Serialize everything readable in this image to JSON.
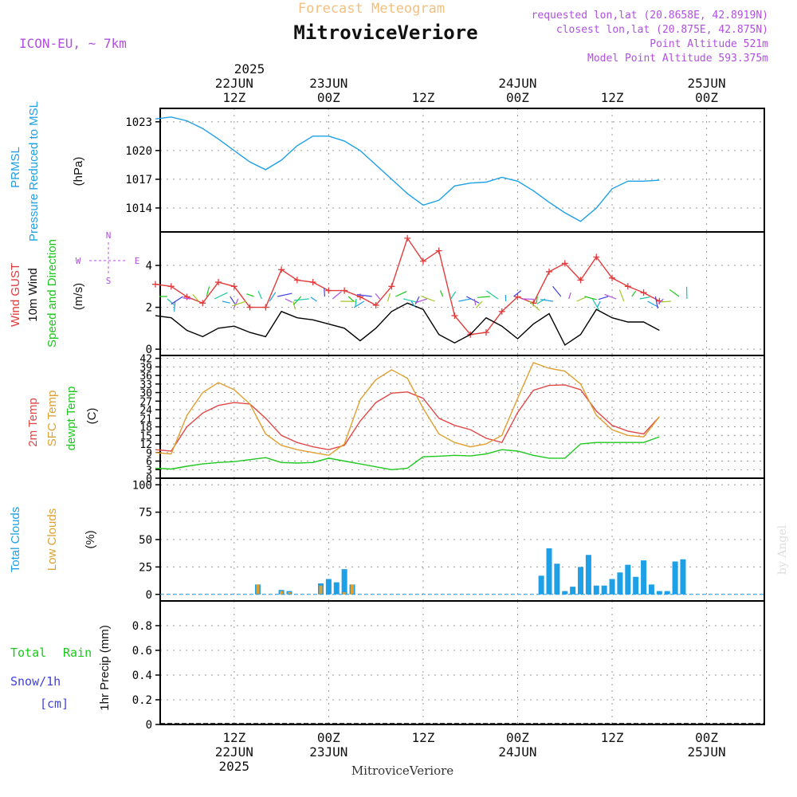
{
  "header": {
    "top_title": "Forecast Meteogram",
    "location": "MitroviceVeriore",
    "model": "ICON-EU, ~ 7km",
    "requested": "requested lon,lat (20.8658E, 42.8919N)",
    "closest": "closest lon,lat (20.875E, 42.875N)",
    "point_alt": "Point Altitude 521m",
    "model_alt": "Model Point Altitude 593.375m"
  },
  "footer": {
    "location": "MitroviceVeriore",
    "credit": "by Angel"
  },
  "colors": {
    "pressure": "#1ea0e6",
    "gust": "#e23b3b",
    "wind": "#000000",
    "dirlabel": "#19c819",
    "temp2m": "#e04848",
    "sfc": "#e0a030",
    "dew": "#1ec81e",
    "total_clouds": "#1ea0e6",
    "low_clouds": "#e0a030",
    "rain": "#19c819",
    "snow": "#4040e0",
    "purple": "#b050e0",
    "title_orange": "#f0c080"
  },
  "chart_data": [
    {
      "type": "line",
      "panel": "pressure",
      "ylabel_left": [
        "PRMSL",
        "Pressure Reduced to MSL"
      ],
      "units": "(hPa)",
      "yticks": [
        1014,
        1017,
        1020,
        1023
      ],
      "ylim": [
        1011.5,
        1024.4
      ],
      "x_hours": [
        0,
        2,
        4,
        6,
        8,
        10,
        12,
        14,
        16,
        18,
        20,
        22,
        24,
        26,
        28,
        30,
        32,
        34,
        36,
        38,
        40,
        42,
        44,
        46,
        48,
        50,
        52,
        54,
        56,
        58,
        60,
        62,
        64
      ],
      "series": [
        {
          "name": "PRMSL",
          "values": [
            1023.3,
            1023.5,
            1023.1,
            1022.3,
            1021.2,
            1020.0,
            1018.8,
            1018.0,
            1019.0,
            1020.5,
            1021.5,
            1021.5,
            1021.0,
            1020.0,
            1018.5,
            1017.0,
            1015.5,
            1014.3,
            1014.8,
            1016.3,
            1016.6,
            1016.7,
            1017.2,
            1016.8,
            1015.8,
            1014.6,
            1013.5,
            1012.6,
            1014.0,
            1016.0,
            1016.8,
            1016.8,
            1016.9
          ]
        }
      ]
    },
    {
      "type": "line",
      "panel": "wind",
      "ylabel_left": [
        "Wind GUST",
        "10m Wind",
        "Speed and Direction"
      ],
      "units": "(m/s)",
      "compass": [
        "N",
        "S",
        "W",
        "E"
      ],
      "yticks": [
        0,
        2,
        4
      ],
      "ylim": [
        -0.3,
        5.6
      ],
      "x_hours": [
        0,
        2,
        4,
        6,
        8,
        10,
        12,
        14,
        16,
        18,
        20,
        22,
        24,
        26,
        28,
        30,
        32,
        34,
        36,
        38,
        40,
        42,
        44,
        46,
        48,
        50,
        52,
        54,
        56,
        58,
        60,
        62,
        64
      ],
      "series": [
        {
          "name": "Wind GUST",
          "values": [
            3.1,
            3.0,
            2.5,
            2.2,
            3.2,
            3.0,
            2.0,
            2.0,
            3.8,
            3.3,
            3.2,
            2.8,
            2.8,
            2.5,
            2.1,
            3.0,
            5.3,
            4.2,
            4.7,
            1.6,
            0.7,
            0.8,
            1.8,
            2.5,
            2.2,
            3.7,
            4.1,
            3.3,
            4.4,
            3.4,
            3.0,
            2.7,
            2.3
          ]
        },
        {
          "name": "10m Wind",
          "values": [
            1.6,
            1.5,
            0.9,
            0.6,
            1.0,
            1.1,
            0.8,
            0.6,
            1.8,
            1.5,
            1.4,
            1.2,
            1.0,
            0.4,
            1.0,
            1.8,
            2.2,
            1.9,
            0.7,
            0.3,
            0.7,
            1.5,
            1.1,
            0.5,
            1.2,
            1.7,
            0.2,
            0.7,
            1.9,
            1.5,
            1.3,
            1.3,
            0.9
          ]
        }
      ]
    },
    {
      "type": "line",
      "panel": "temperature",
      "ylabel_left": [
        "2m Temp",
        "SFC Temp",
        "dewpt Temp"
      ],
      "units": "(C)",
      "yticks": [
        0,
        3,
        6,
        9,
        12,
        15,
        18,
        21,
        24,
        27,
        30,
        33,
        36,
        39,
        42
      ],
      "ylim": [
        0,
        43
      ],
      "x_hours": [
        0,
        2,
        4,
        6,
        8,
        10,
        12,
        14,
        16,
        18,
        20,
        22,
        24,
        26,
        28,
        30,
        32,
        34,
        36,
        38,
        40,
        42,
        44,
        46,
        48,
        50,
        52,
        54,
        56,
        58,
        60,
        62,
        64
      ],
      "series": [
        {
          "name": "2m Temp",
          "values": [
            10.0,
            9.5,
            18.0,
            22.8,
            25.5,
            26.5,
            26.0,
            21.0,
            15.0,
            12.5,
            11.0,
            10.0,
            11.5,
            20.0,
            26.5,
            29.8,
            30.2,
            28.0,
            21.0,
            18.5,
            17.0,
            14.0,
            12.5,
            23.0,
            30.8,
            32.5,
            32.7,
            31.0,
            23.5,
            18.5,
            16.5,
            15.5,
            21.5
          ]
        },
        {
          "name": "SFC Temp",
          "values": [
            9.0,
            8.5,
            22.0,
            30.0,
            33.5,
            31.0,
            26.0,
            15.5,
            11.5,
            10.0,
            9.0,
            8.0,
            12.0,
            27.5,
            34.5,
            38.0,
            35.0,
            24.5,
            15.5,
            12.5,
            11.0,
            12.0,
            15.0,
            28.0,
            40.5,
            38.5,
            37.5,
            33.0,
            22.0,
            17.0,
            15.0,
            14.5,
            21.5
          ]
        },
        {
          "name": "dewpt Temp",
          "values": [
            3.5,
            3.2,
            4.2,
            5.0,
            5.5,
            5.8,
            6.5,
            7.2,
            5.5,
            5.3,
            5.5,
            7.0,
            6.0,
            5.0,
            4.0,
            3.0,
            3.5,
            7.5,
            7.7,
            8.0,
            7.8,
            8.5,
            10.0,
            9.5,
            8.0,
            7.0,
            7.0,
            12.0,
            12.5,
            12.5,
            12.5,
            12.5,
            14.5
          ]
        }
      ]
    },
    {
      "type": "bar",
      "panel": "clouds",
      "ylabel_left": [
        "Total Clouds",
        "Low Clouds"
      ],
      "units": "(%)",
      "yticks": [
        0,
        25,
        50,
        75,
        100
      ],
      "ylim": [
        -6,
        106
      ],
      "bars": [
        {
          "h": 13,
          "total": 9,
          "low": 9
        },
        {
          "h": 16,
          "total": 4,
          "low": 3
        },
        {
          "h": 17,
          "total": 3,
          "low": 2
        },
        {
          "h": 21,
          "total": 10,
          "low": 8
        },
        {
          "h": 22,
          "total": 14,
          "low": 0
        },
        {
          "h": 23,
          "total": 11,
          "low": 0
        },
        {
          "h": 24,
          "total": 23,
          "low": 2
        },
        {
          "h": 25,
          "total": 9,
          "low": 9
        },
        {
          "h": 49,
          "total": 17,
          "low": 0
        },
        {
          "h": 50,
          "total": 42,
          "low": 0
        },
        {
          "h": 51,
          "total": 28,
          "low": 0
        },
        {
          "h": 52,
          "total": 3,
          "low": 0
        },
        {
          "h": 53,
          "total": 7,
          "low": 0
        },
        {
          "h": 54,
          "total": 25,
          "low": 0
        },
        {
          "h": 55,
          "total": 36,
          "low": 0
        },
        {
          "h": 56,
          "total": 8,
          "low": 0
        },
        {
          "h": 57,
          "total": 8,
          "low": 0
        },
        {
          "h": 58,
          "total": 14,
          "low": 0
        },
        {
          "h": 59,
          "total": 20,
          "low": 0
        },
        {
          "h": 60,
          "total": 27,
          "low": 0
        },
        {
          "h": 61,
          "total": 16,
          "low": 0
        },
        {
          "h": 62,
          "total": 31,
          "low": 0
        },
        {
          "h": 63,
          "total": 9,
          "low": 0
        },
        {
          "h": 64,
          "total": 3,
          "low": 0
        },
        {
          "h": 65,
          "total": 3,
          "low": 0
        },
        {
          "h": 66,
          "total": 30,
          "low": 0
        },
        {
          "h": 67,
          "total": 32,
          "low": 0
        }
      ]
    },
    {
      "type": "bar",
      "panel": "precip",
      "ylabel_left": [
        "Total",
        "Rain",
        "Snow/1h",
        "[cm]"
      ],
      "ylabel": "1hr Precip (mm)",
      "yticks": [
        0,
        0.2,
        0.4,
        0.6,
        0.8
      ],
      "ylim": [
        0,
        1.0
      ],
      "values": []
    }
  ],
  "xaxis": {
    "top_year": "2025",
    "ticks": [
      {
        "h": 10,
        "top": [
          "22JUN",
          "12Z"
        ],
        "bottom": [
          "12Z",
          "22JUN",
          "2025"
        ]
      },
      {
        "h": 22,
        "top": [
          "23JUN",
          "00Z"
        ],
        "bottom": [
          "00Z",
          "23JUN"
        ]
      },
      {
        "h": 34,
        "top": [
          "12Z"
        ],
        "bottom": [
          "12Z"
        ]
      },
      {
        "h": 46,
        "top": [
          "24JUN",
          "00Z"
        ],
        "bottom": [
          "00Z",
          "24JUN"
        ]
      },
      {
        "h": 58,
        "top": [
          "12Z"
        ],
        "bottom": [
          "12Z"
        ]
      },
      {
        "h": 70,
        "top": [
          "25JUN",
          "00Z"
        ],
        "bottom": [
          "00Z",
          "25JUN"
        ]
      }
    ]
  }
}
